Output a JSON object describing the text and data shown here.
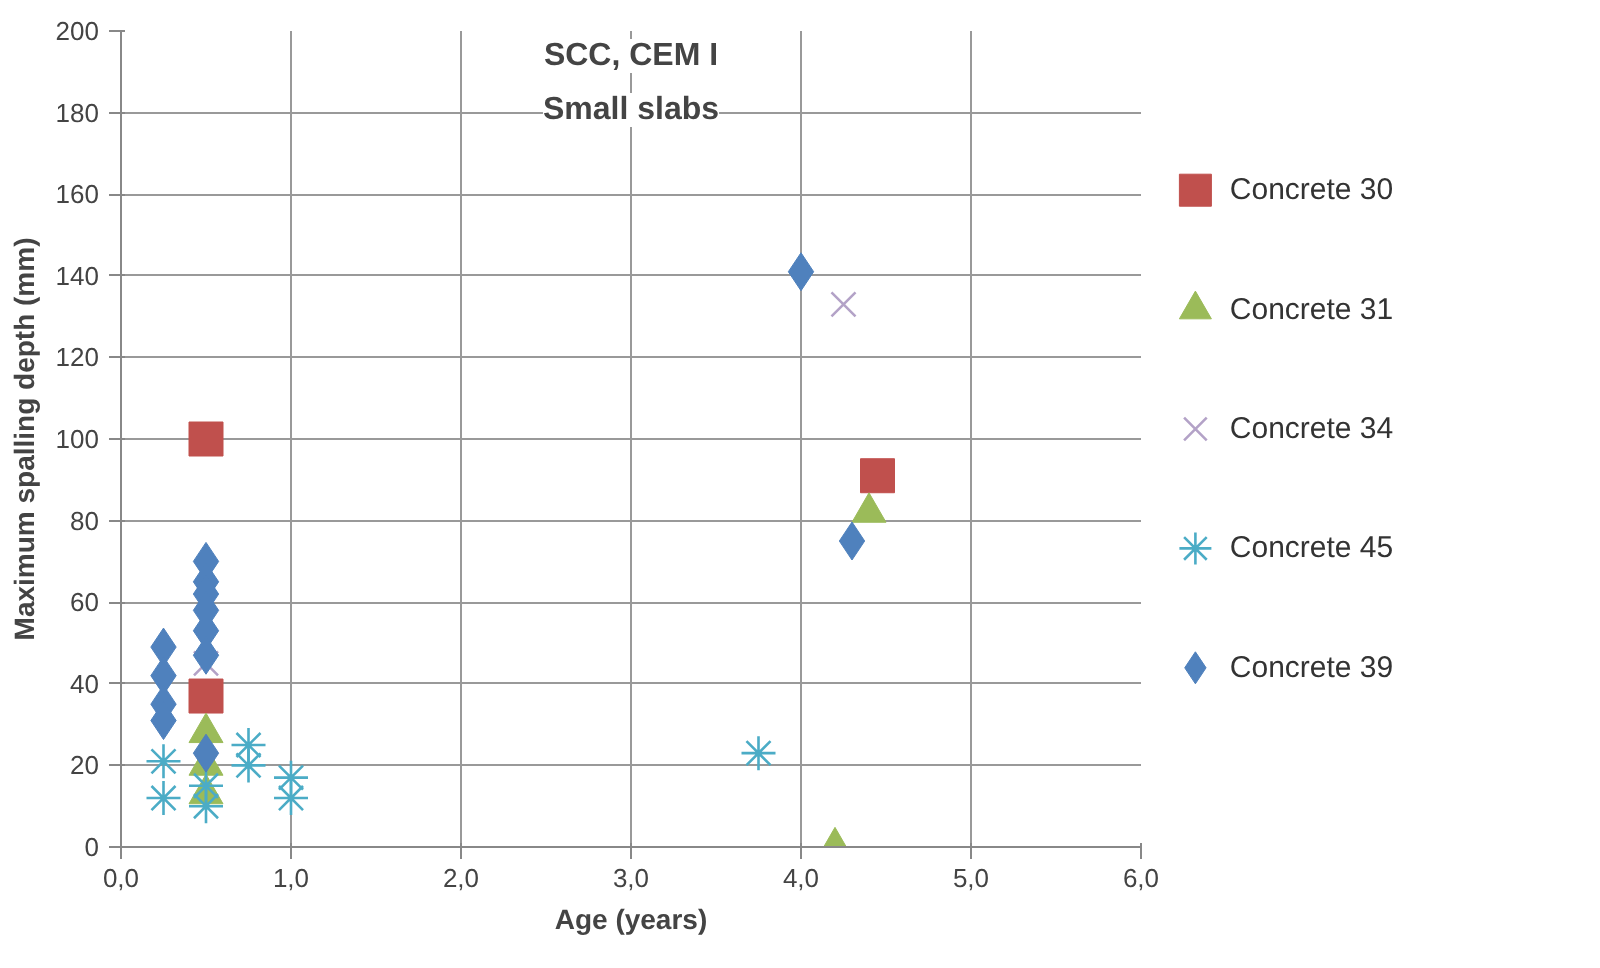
{
  "chart_data": {
    "type": "scatter",
    "title": "SCC, CEM I",
    "subtitle": "Small slabs",
    "xlabel": "Age (years)",
    "ylabel": "Maximum spalling depth (mm)",
    "xlim": [
      0,
      6
    ],
    "xticks": [
      {
        "value": 0,
        "label": "0,0"
      },
      {
        "value": 1,
        "label": "1,0"
      },
      {
        "value": 2,
        "label": "2,0"
      },
      {
        "value": 3,
        "label": "3,0"
      },
      {
        "value": 4,
        "label": "4,0"
      },
      {
        "value": 5,
        "label": "5,0"
      },
      {
        "value": 6,
        "label": "6,0"
      }
    ],
    "ylim": [
      0,
      200
    ],
    "yticks": [
      0,
      20,
      40,
      60,
      80,
      100,
      120,
      140,
      160,
      180,
      200
    ],
    "grid": true,
    "legend": "right",
    "series": [
      {
        "name": "Concrete 30",
        "color": "#c0504d",
        "marker": "square",
        "x": [
          0.5,
          0.5,
          4.45
        ],
        "values": [
          100,
          37,
          91
        ]
      },
      {
        "name": "Concrete 31",
        "color": "#9bbb59",
        "marker": "triangle",
        "x": [
          0.5,
          0.5,
          0.5,
          4.4,
          4.2
        ],
        "values": [
          28,
          20,
          13,
          82,
          0
        ]
      },
      {
        "name": "Concrete 34",
        "color": "#b3a2c7",
        "marker": "cross",
        "x": [
          0.5,
          4.25
        ],
        "values": [
          45,
          133
        ]
      },
      {
        "name": "Concrete 45",
        "color": "#4bacc6",
        "marker": "cross",
        "x": [
          0.25,
          0.25,
          0.5,
          0.5,
          0.75,
          0.75,
          1.0,
          1.0,
          3.75
        ],
        "values": [
          21,
          12,
          15,
          10,
          25,
          20,
          17,
          12,
          23
        ]
      },
      {
        "name": "Concrete 39",
        "color": "#4f81bd",
        "marker": "diamond",
        "x": [
          0.25,
          0.25,
          0.25,
          0.25,
          0.5,
          0.5,
          0.5,
          0.5,
          0.5,
          0.5,
          0.5,
          4.0,
          4.3
        ],
        "values": [
          49,
          42,
          35,
          31,
          70,
          65,
          62,
          58,
          53,
          47,
          23,
          141,
          75
        ]
      }
    ]
  }
}
